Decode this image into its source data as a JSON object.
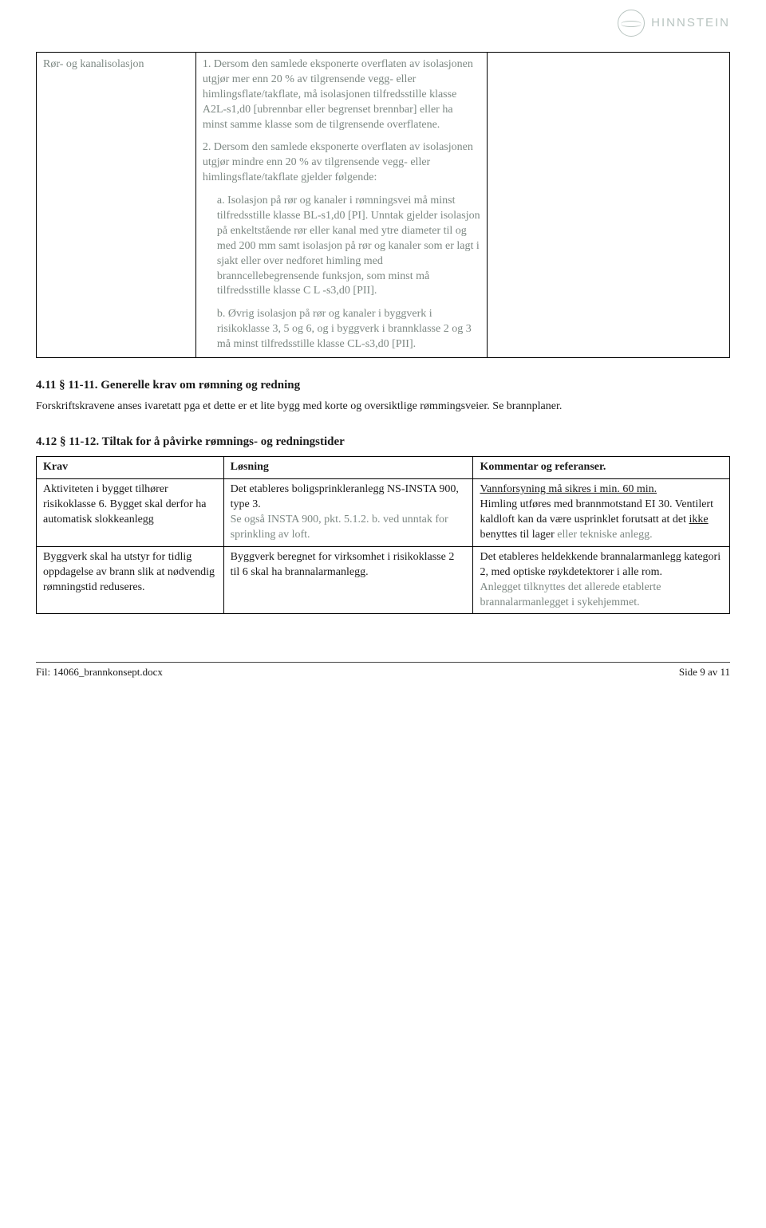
{
  "brand": "HINNSTEIN",
  "table1": {
    "col1": "Rør- og kanalisolasjon",
    "p1": "1. Dersom den samlede eksponerte overflaten av isolasjonen utgjør mer enn 20 % av tilgrensende vegg- eller himlingsflate/takflate, må isolasjonen tilfredsstille klasse A2L-s1,d0 [ubrennbar eller begrenset brennbar] eller ha minst samme klasse som de tilgrensende overflatene.",
    "p2": "2. Dersom den samlede eksponerte overflaten av isolasjonen utgjør mindre enn 20 % av tilgrensende vegg- eller himlingsflate/takflate gjelder følgende:",
    "pa": "a. Isolasjon på rør og kanaler i rømningsvei må minst tilfredsstille klasse BL-s1,d0 [PI]. Unntak gjelder isolasjon på enkeltstående rør eller kanal med ytre diameter til og med 200 mm samt isolasjon på rør og kanaler som er lagt i sjakt eller over nedforet himling med branncellebegrensende funksjon, som minst må tilfredsstille klasse C L -s3,d0 [PII].",
    "pb": "b. Øvrig isolasjon på rør og kanaler i byggverk i risikoklasse 3, 5 og 6, og i byggverk i brannklasse 2 og 3 må minst tilfredsstille klasse CL-s3,d0 [PII]."
  },
  "sec411": {
    "title": "4.11 § 11-11. Generelle krav om rømning og redning",
    "body": "Forskriftskravene anses ivaretatt pga et dette er et lite bygg med korte og oversiktlige rømmingsveier. Se brannplaner."
  },
  "sec412": {
    "title": "4.12 § 11-12. Tiltak for å påvirke rømnings- og redningstider",
    "headers": {
      "h1": "Krav",
      "h2": "Løsning",
      "h3": "Kommentar og referanser."
    },
    "row1": {
      "krav": "Aktiviteten i bygget tilhører risikoklasse 6. Bygget skal derfor ha automatisk slokkeanlegg",
      "los_a": "Det etableres boligsprinkleranlegg NS-INSTA 900, type 3.",
      "los_b": "Se også INSTA  900, pkt. 5.1.2. b. ved unntak for sprinkling av loft.",
      "kom_a_u": "Vannforsyning må sikres i min. 60 min.",
      "kom_b1": "Himling utføres med brannmotstand EI 30. Ventilert kaldloft kan da være usprinklet forutsatt at det ",
      "kom_b_u": "ikke",
      "kom_b2": " benyttes til lager ",
      "kom_b3": "eller tekniske anlegg."
    },
    "row2": {
      "krav": "Byggverk skal ha utstyr for tidlig oppdagelse av brann slik at nødvendig rømningstid reduseres.",
      "los": "Byggverk beregnet for virksomhet i risikoklasse 2 til 6 skal ha brannalarmanlegg.",
      "kom_a": "Det etableres heldekkende brannalarmanlegg kategori 2, med optiske røykdetektorer i alle rom.",
      "kom_b": "Anlegget tilknyttes det allerede etablerte brannalarmanlegget i sykehjemmet."
    }
  },
  "footer": {
    "left": "Fil: 14066_brannkonsept.docx",
    "right": "Side 9 av 11"
  }
}
